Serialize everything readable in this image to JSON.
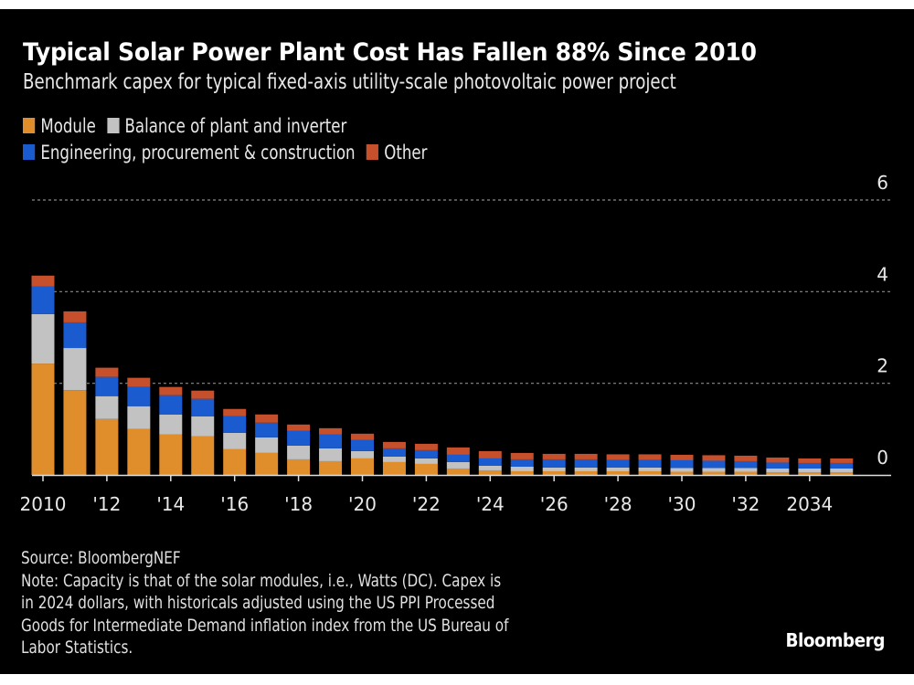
{
  "header": {
    "title": "Typical Solar Power Plant Cost Has Fallen 88% Since 2010",
    "subtitle": "Benchmark capex for typical fixed-axis utility-scale photovoltaic power project"
  },
  "legend": [
    {
      "label": "Module",
      "color": "#e08d2c"
    },
    {
      "label": "Balance of plant and inverter",
      "color": "#c2c2c2"
    },
    {
      "label": "Engineering, procurement & construction",
      "color": "#1a5bd0"
    },
    {
      "label": "Other",
      "color": "#c6502c"
    }
  ],
  "footer": {
    "source": "Source: BloombergNEF",
    "note_lines": [
      "Note: Capacity is that of the solar modules, i.e., Watts (DC). Capex is",
      "in 2024 dollars, with historicals adjusted using the US PPI Processed",
      "Goods for Intermediate Demand inflation index from the US Bureau of",
      "Labor Statistics."
    ],
    "brand": "Bloomberg"
  },
  "chart_data": {
    "type": "bar",
    "stacked": true,
    "title": "Typical Solar Power Plant Cost Has Fallen 88% Since 2010",
    "subtitle": "Benchmark capex for typical fixed-axis utility-scale photovoltaic power project",
    "xlabel": "",
    "ylabel": "",
    "ylim": [
      0,
      6
    ],
    "y_ticks": [
      0,
      2,
      4,
      6
    ],
    "y_axis_side": "right",
    "grid": true,
    "legend_position": "top-left",
    "categories": [
      "2010",
      "2011",
      "2012",
      "2013",
      "2014",
      "2015",
      "2016",
      "2017",
      "2018",
      "2019",
      "2020",
      "2021",
      "2022",
      "2023",
      "2024",
      "2025",
      "2026",
      "2027",
      "2028",
      "2029",
      "2030",
      "2031",
      "2032",
      "2033",
      "2034",
      "2035"
    ],
    "x_tick_labels": [
      {
        "category": "2010",
        "label": "2010"
      },
      {
        "category": "2012",
        "label": "'12"
      },
      {
        "category": "2014",
        "label": "'14"
      },
      {
        "category": "2016",
        "label": "'16"
      },
      {
        "category": "2018",
        "label": "'18"
      },
      {
        "category": "2020",
        "label": "'20"
      },
      {
        "category": "2022",
        "label": "'22"
      },
      {
        "category": "2024",
        "label": "'24"
      },
      {
        "category": "2026",
        "label": "'26"
      },
      {
        "category": "2028",
        "label": "'28"
      },
      {
        "category": "2030",
        "label": "'30"
      },
      {
        "category": "2032",
        "label": "'32"
      },
      {
        "category": "2034",
        "label": "2034"
      }
    ],
    "series": [
      {
        "name": "Module",
        "color": "#e08d2c",
        "values": [
          2.43,
          1.85,
          1.22,
          1.0,
          0.88,
          0.84,
          0.56,
          0.48,
          0.34,
          0.3,
          0.36,
          0.28,
          0.24,
          0.14,
          0.1,
          0.08,
          0.08,
          0.08,
          0.08,
          0.08,
          0.07,
          0.07,
          0.07,
          0.06,
          0.06,
          0.06
        ]
      },
      {
        "name": "Balance of plant and inverter",
        "color": "#c2c2c2",
        "values": [
          1.08,
          0.92,
          0.5,
          0.5,
          0.44,
          0.44,
          0.36,
          0.34,
          0.3,
          0.28,
          0.16,
          0.12,
          0.12,
          0.14,
          0.1,
          0.1,
          0.08,
          0.08,
          0.08,
          0.08,
          0.08,
          0.08,
          0.08,
          0.08,
          0.08,
          0.08
        ]
      },
      {
        "name": "Engineering, procurement & construction",
        "color": "#1a5bd0",
        "values": [
          0.6,
          0.56,
          0.42,
          0.42,
          0.42,
          0.38,
          0.36,
          0.32,
          0.32,
          0.3,
          0.24,
          0.18,
          0.18,
          0.16,
          0.16,
          0.16,
          0.18,
          0.18,
          0.17,
          0.17,
          0.17,
          0.16,
          0.15,
          0.13,
          0.12,
          0.12
        ]
      },
      {
        "name": "Other",
        "color": "#c6502c",
        "values": [
          0.24,
          0.24,
          0.2,
          0.2,
          0.18,
          0.18,
          0.16,
          0.18,
          0.14,
          0.14,
          0.14,
          0.14,
          0.14,
          0.16,
          0.16,
          0.14,
          0.12,
          0.12,
          0.12,
          0.12,
          0.12,
          0.12,
          0.12,
          0.11,
          0.1,
          0.1
        ]
      }
    ]
  }
}
